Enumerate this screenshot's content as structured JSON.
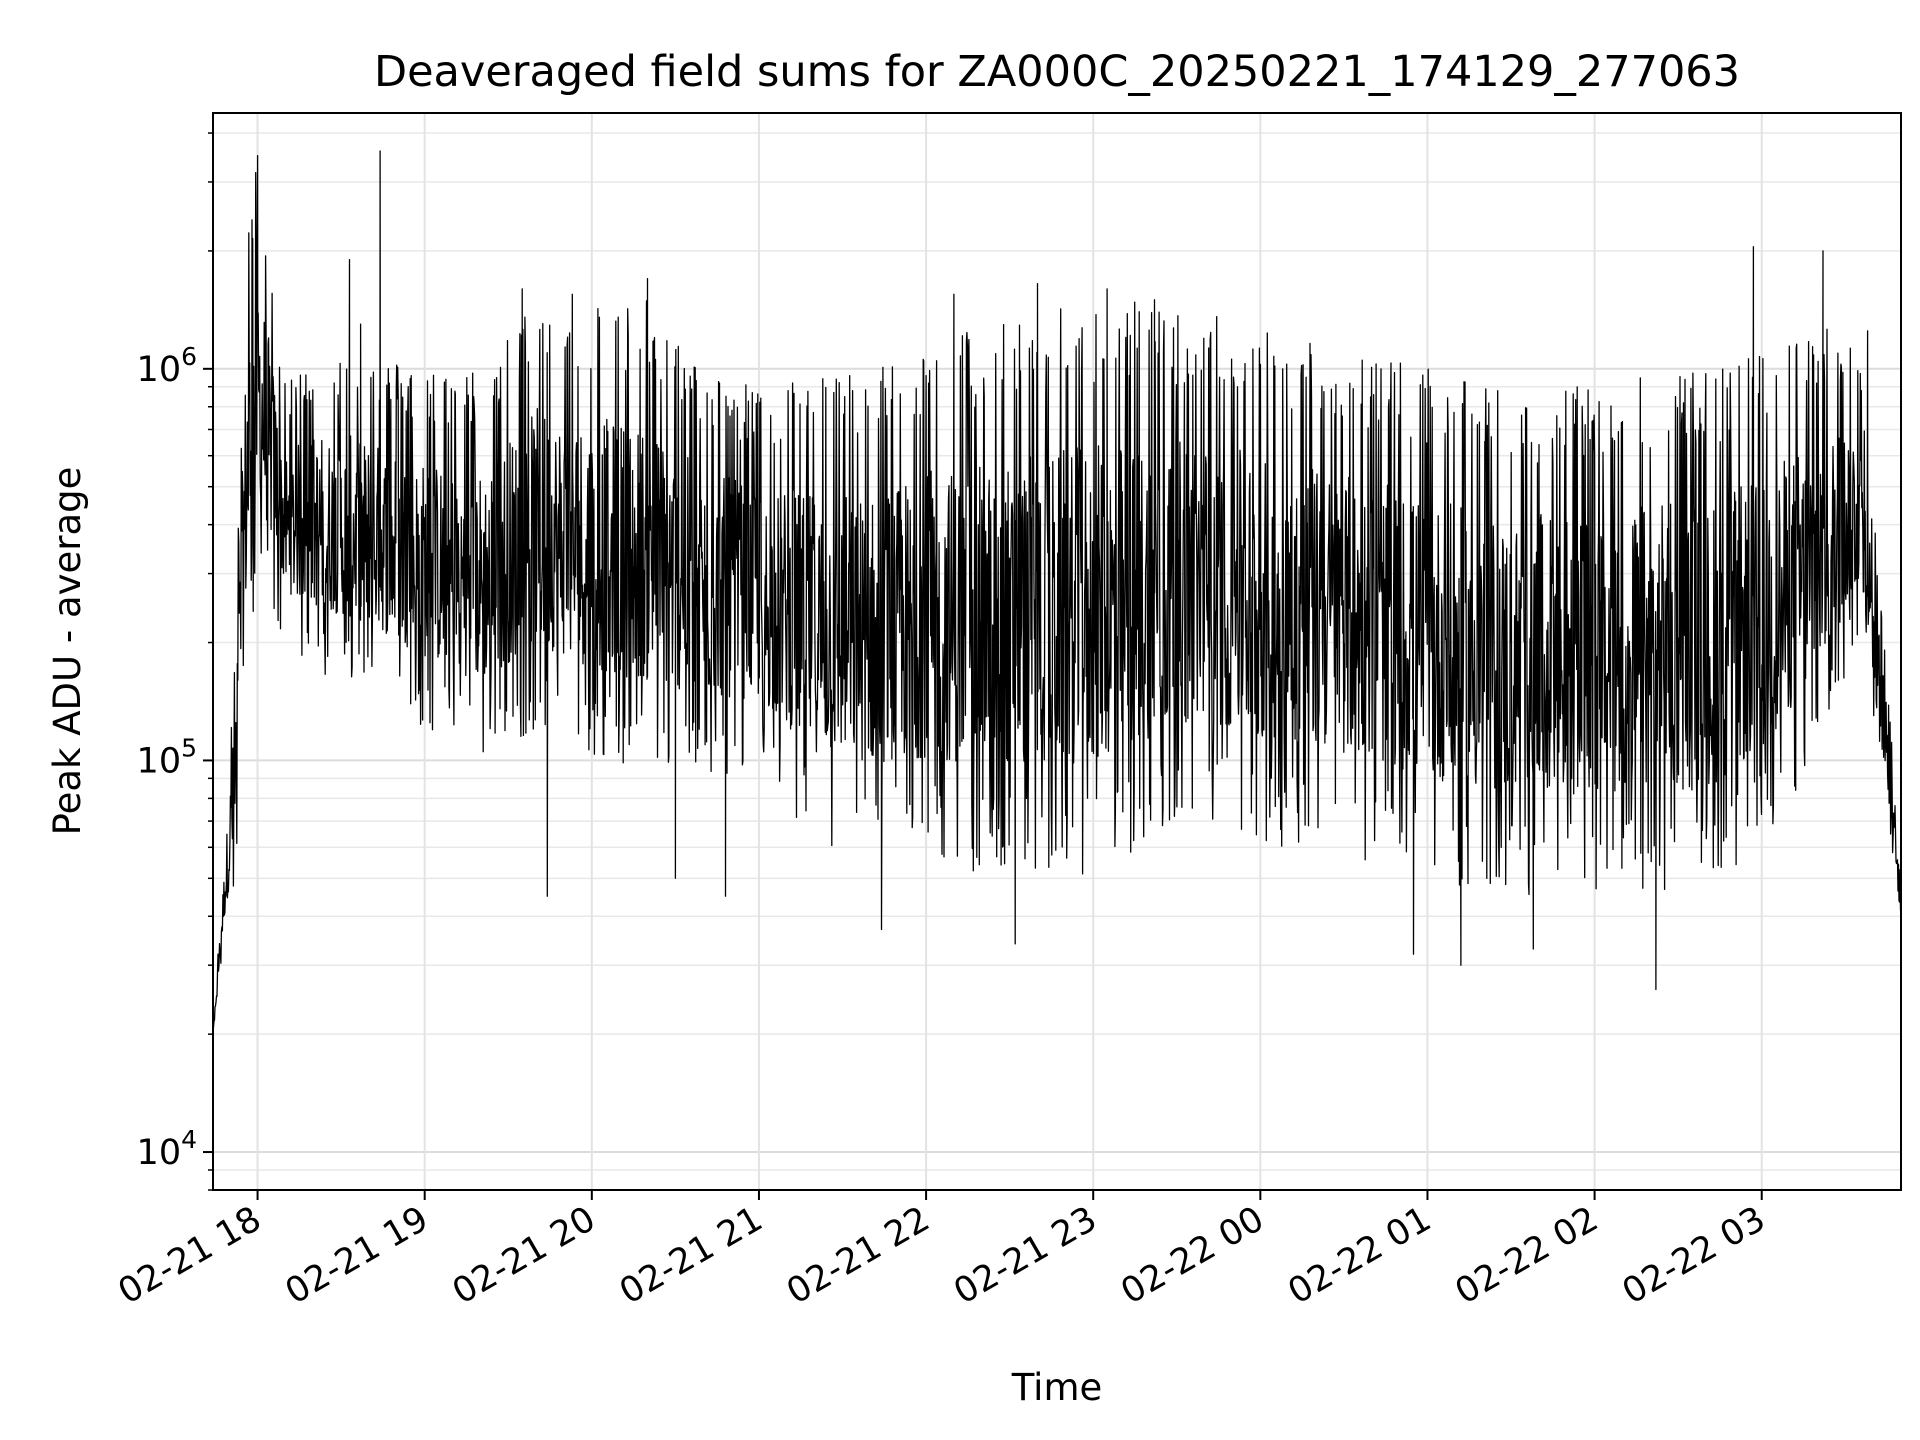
{
  "chart_data": {
    "type": "line",
    "title": "Deaveraged field sums for ZA000C_20250221_174129_277063",
    "xlabel": "Time",
    "ylabel": "Peak ADU - average",
    "yscale": "log",
    "ylim": [
      8000,
      4500000
    ],
    "xlim": [
      "2025-02-21 17:44",
      "2025-02-22 03:50"
    ],
    "grid": true,
    "line_color": "#000000",
    "x_ticks": [
      {
        "label": "02-21 18",
        "time": "2025-02-21 18:00"
      },
      {
        "label": "02-21 19",
        "time": "2025-02-21 19:00"
      },
      {
        "label": "02-21 20",
        "time": "2025-02-21 20:00"
      },
      {
        "label": "02-21 21",
        "time": "2025-02-21 21:00"
      },
      {
        "label": "02-21 22",
        "time": "2025-02-21 22:00"
      },
      {
        "label": "02-21 23",
        "time": "2025-02-21 23:00"
      },
      {
        "label": "02-22 00",
        "time": "2025-02-22 00:00"
      },
      {
        "label": "02-22 01",
        "time": "2025-02-22 01:00"
      },
      {
        "label": "02-22 02",
        "time": "2025-02-22 02:00"
      },
      {
        "label": "02-22 03",
        "time": "2025-02-22 03:00"
      }
    ],
    "y_ticks": [
      {
        "base": "10",
        "exp": "4",
        "value": 10000
      },
      {
        "base": "10",
        "exp": "5",
        "value": 100000
      },
      {
        "base": "10",
        "exp": "6",
        "value": 1000000
      }
    ],
    "envelope": [
      {
        "time": "2025-02-21 17:44",
        "low": 20000,
        "high": 20000
      },
      {
        "time": "2025-02-21 17:48",
        "low": 35000,
        "high": 60000
      },
      {
        "time": "2025-02-21 17:52",
        "low": 45000,
        "high": 200000
      },
      {
        "time": "2025-02-21 17:56",
        "low": 150000,
        "high": 2500000
      },
      {
        "time": "2025-02-21 18:00",
        "low": 300000,
        "high": 3500000
      },
      {
        "time": "2025-02-21 18:10",
        "low": 200000,
        "high": 900000
      },
      {
        "time": "2025-02-21 18:20",
        "low": 170000,
        "high": 1100000
      },
      {
        "time": "2025-02-21 18:30",
        "low": 160000,
        "high": 1100000
      },
      {
        "time": "2025-02-21 18:40",
        "low": 150000,
        "high": 1100000
      },
      {
        "time": "2025-02-21 19:00",
        "low": 120000,
        "high": 1000000
      },
      {
        "time": "2025-02-21 19:20",
        "low": 100000,
        "high": 1000000
      },
      {
        "time": "2025-02-21 19:40",
        "low": 120000,
        "high": 1500000
      },
      {
        "time": "2025-02-21 20:00",
        "low": 100000,
        "high": 1500000
      },
      {
        "time": "2025-02-21 20:20",
        "low": 90000,
        "high": 1500000
      },
      {
        "time": "2025-02-21 20:40",
        "low": 90000,
        "high": 1000000
      },
      {
        "time": "2025-02-21 21:00",
        "low": 90000,
        "high": 900000
      },
      {
        "time": "2025-02-21 21:20",
        "low": 60000,
        "high": 1000000
      },
      {
        "time": "2025-02-21 21:40",
        "low": 55000,
        "high": 1000000
      },
      {
        "time": "2025-02-21 22:00",
        "low": 55000,
        "high": 1200000
      },
      {
        "time": "2025-02-21 22:20",
        "low": 50000,
        "high": 1300000
      },
      {
        "time": "2025-02-21 22:40",
        "low": 50000,
        "high": 1400000
      },
      {
        "time": "2025-02-21 23:00",
        "low": 50000,
        "high": 1500000
      },
      {
        "time": "2025-02-21 23:20",
        "low": 60000,
        "high": 1500000
      },
      {
        "time": "2025-02-21 23:40",
        "low": 70000,
        "high": 1400000
      },
      {
        "time": "2025-02-22 00:00",
        "low": 60000,
        "high": 1300000
      },
      {
        "time": "2025-02-22 00:20",
        "low": 60000,
        "high": 1200000
      },
      {
        "time": "2025-02-22 00:40",
        "low": 55000,
        "high": 1100000
      },
      {
        "time": "2025-02-22 01:00",
        "low": 50000,
        "high": 1000000
      },
      {
        "time": "2025-02-22 01:20",
        "low": 45000,
        "high": 900000
      },
      {
        "time": "2025-02-22 01:40",
        "low": 45000,
        "high": 900000
      },
      {
        "time": "2025-02-22 02:00",
        "low": 45000,
        "high": 900000
      },
      {
        "time": "2025-02-22 02:20",
        "low": 45000,
        "high": 1000000
      },
      {
        "time": "2025-02-22 02:40",
        "low": 45000,
        "high": 1000000
      },
      {
        "time": "2025-02-22 03:00",
        "low": 60000,
        "high": 1100000
      },
      {
        "time": "2025-02-22 03:20",
        "low": 100000,
        "high": 1300000
      },
      {
        "time": "2025-02-22 03:35",
        "low": 200000,
        "high": 1200000
      },
      {
        "time": "2025-02-22 03:42",
        "low": 100000,
        "high": 300000
      },
      {
        "time": "2025-02-22 03:50",
        "low": 40000,
        "high": 60000
      }
    ],
    "peaks": [
      {
        "time": "2025-02-21 17:58",
        "value": 2400000
      },
      {
        "time": "2025-02-21 18:00",
        "value": 3500000
      },
      {
        "time": "2025-02-21 18:33",
        "value": 1900000
      },
      {
        "time": "2025-02-21 18:37",
        "value": 1300000
      },
      {
        "time": "2025-02-21 18:44",
        "value": 3600000
      },
      {
        "time": "2025-02-21 19:35",
        "value": 1600000
      },
      {
        "time": "2025-02-21 19:53",
        "value": 1550000
      },
      {
        "time": "2025-02-21 20:20",
        "value": 1700000
      },
      {
        "time": "2025-02-21 22:10",
        "value": 1550000
      },
      {
        "time": "2025-02-21 22:40",
        "value": 1650000
      },
      {
        "time": "2025-02-21 23:05",
        "value": 1600000
      },
      {
        "time": "2025-02-21 23:22",
        "value": 1500000
      },
      {
        "time": "2025-02-22 02:57",
        "value": 2050000
      },
      {
        "time": "2025-02-22 03:22",
        "value": 2000000
      },
      {
        "time": "2025-02-22 03:38",
        "value": 1250000
      }
    ],
    "dips": [
      {
        "time": "2025-02-21 19:44",
        "value": 45000
      },
      {
        "time": "2025-02-21 20:30",
        "value": 50000
      },
      {
        "time": "2025-02-21 20:48",
        "value": 45000
      },
      {
        "time": "2025-02-21 21:44",
        "value": 37000
      },
      {
        "time": "2025-02-21 22:32",
        "value": 34000
      },
      {
        "time": "2025-02-22 00:55",
        "value": 32000
      },
      {
        "time": "2025-02-22 01:12",
        "value": 30000
      },
      {
        "time": "2025-02-22 01:38",
        "value": 33000
      },
      {
        "time": "2025-02-22 02:22",
        "value": 26000
      }
    ]
  }
}
